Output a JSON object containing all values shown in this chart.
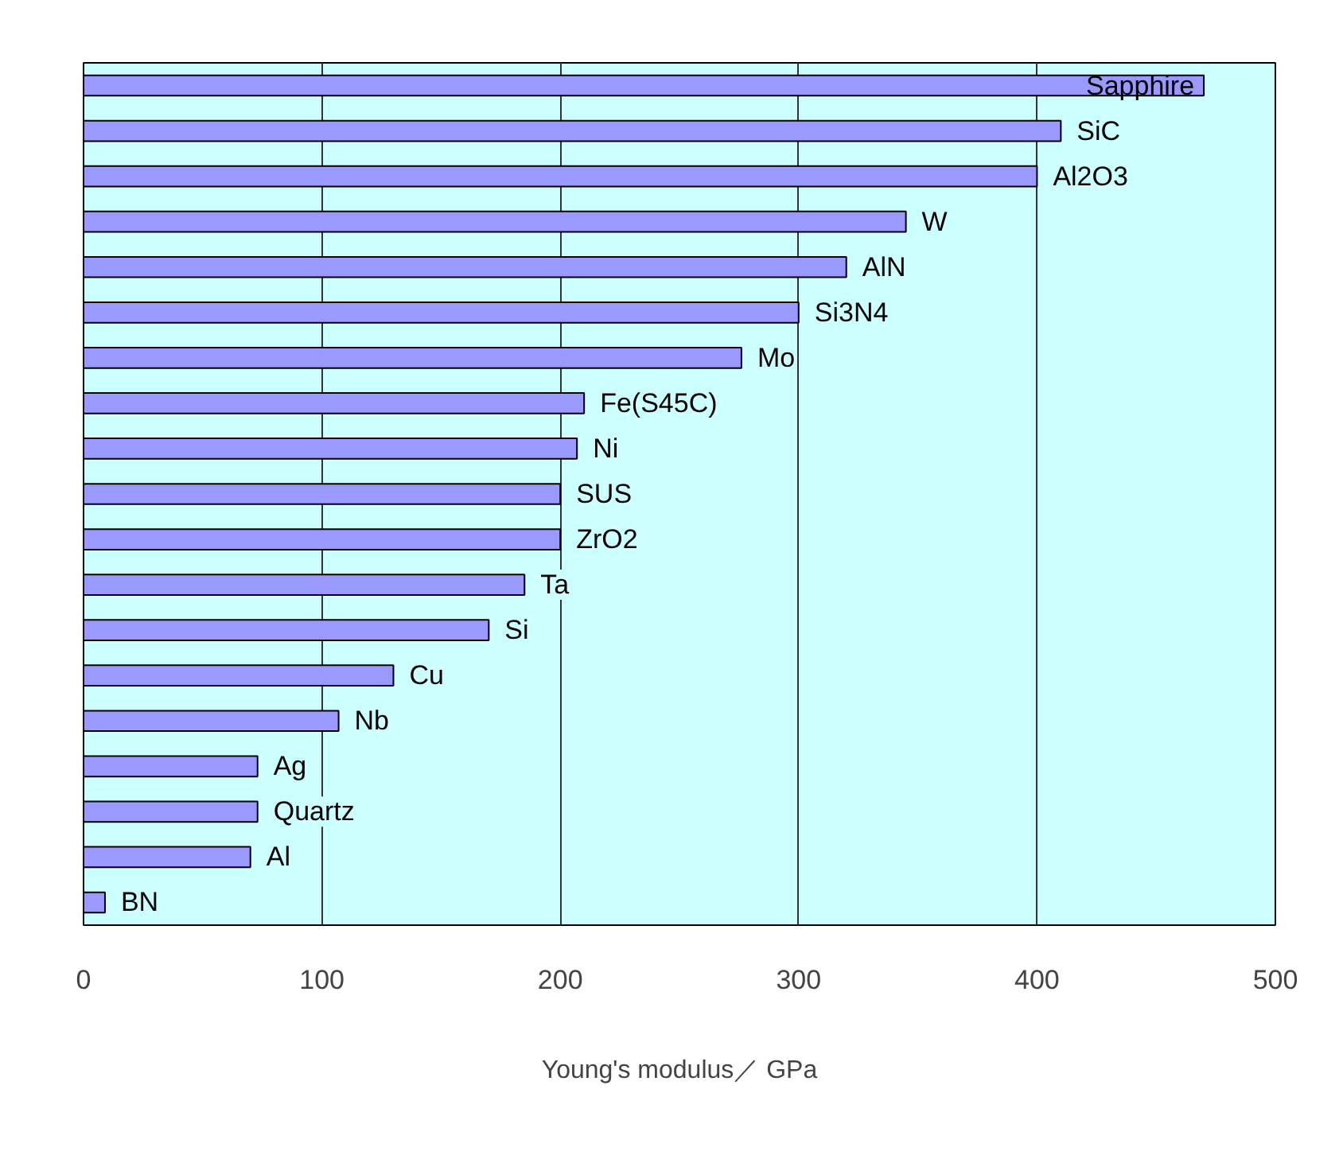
{
  "chart_data": {
    "type": "bar",
    "orientation": "horizontal",
    "xlabel": "Young's modulus／ GPa",
    "categories": [
      "Sapphire",
      "SiC",
      "Al2O3",
      "W",
      "AlN",
      "Si3N4",
      "Mo",
      "Fe(S45C)",
      "Ni",
      "SUS",
      "ZrO2",
      "Ta",
      "Si",
      "Cu",
      "Nb",
      "Ag",
      "Quartz",
      "Al",
      "BN"
    ],
    "values": [
      470,
      410,
      400,
      345,
      320,
      300,
      276,
      210,
      207,
      200,
      200,
      185,
      170,
      130,
      107,
      73,
      73,
      70,
      9
    ],
    "color": "#9999ff",
    "xlim": [
      0,
      500
    ],
    "xticks": [
      0,
      100,
      200,
      300,
      400,
      500
    ],
    "grid": "x",
    "tick_labels": "x"
  }
}
